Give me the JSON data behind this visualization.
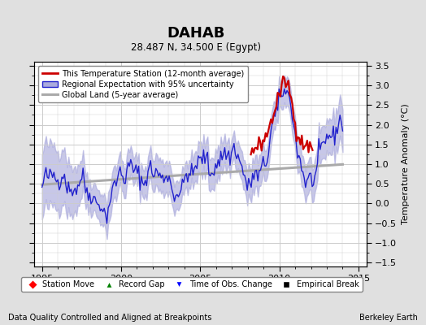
{
  "title": "DAHAB",
  "subtitle": "28.487 N, 34.500 E (Egypt)",
  "ylabel": "Temperature Anomaly (°C)",
  "xlabel_left": "Data Quality Controlled and Aligned at Breakpoints",
  "xlabel_right": "Berkeley Earth",
  "xlim": [
    1994.5,
    2015.5
  ],
  "ylim": [
    -1.6,
    3.6
  ],
  "yticks": [
    -1.5,
    -1.0,
    -0.5,
    0.0,
    0.5,
    1.0,
    1.5,
    2.0,
    2.5,
    3.0,
    3.5
  ],
  "xticks": [
    1995,
    2000,
    2005,
    2010,
    2015
  ],
  "bg_color": "#e0e0e0",
  "plot_bg_color": "#ffffff",
  "grid_color": "#cccccc",
  "regional_color": "#2222cc",
  "regional_fill": "#aaaadd",
  "station_color": "#cc0000",
  "global_color": "#aaaaaa",
  "legend1_labels": [
    "This Temperature Station (12-month average)",
    "Regional Expectation with 95% uncertainty",
    "Global Land (5-year average)"
  ],
  "legend2_labels": [
    "Station Move",
    "Record Gap",
    "Time of Obs. Change",
    "Empirical Break"
  ]
}
